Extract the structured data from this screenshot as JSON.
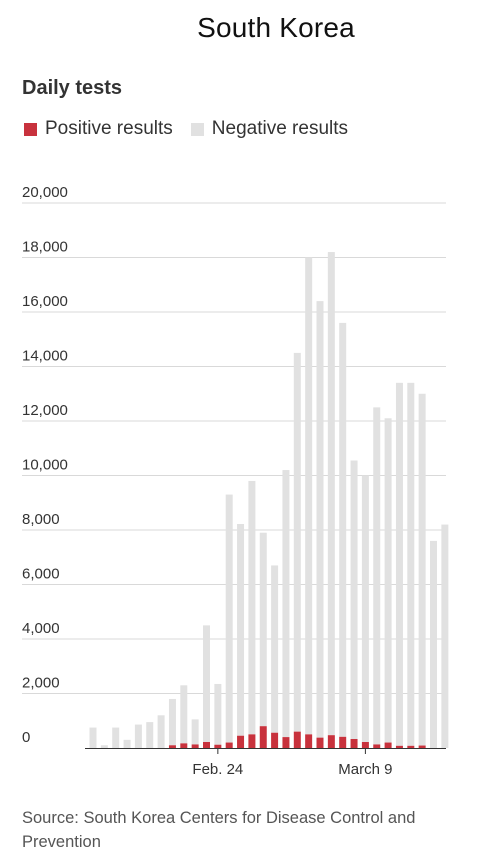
{
  "chart_data": {
    "type": "bar",
    "title": "South Korea",
    "subtitle": "Daily tests",
    "stacked": true,
    "ylim": [
      0,
      20000
    ],
    "y_ticks": [
      0,
      2000,
      4000,
      6000,
      8000,
      10000,
      12000,
      14000,
      16000,
      18000,
      20000
    ],
    "y_tick_labels": [
      "0",
      "2,000",
      "4,000",
      "6,000",
      "8,000",
      "10,000",
      "12,000",
      "14,000",
      "16,000",
      "18,000",
      "20,000"
    ],
    "x_ticks": [
      {
        "index": 11,
        "label": "Feb. 24"
      },
      {
        "index": 24,
        "label": "March 9"
      }
    ],
    "grid": true,
    "legend_position": "top-left",
    "series": [
      {
        "name": "Positive results",
        "color": "#c8323d",
        "values": [
          0,
          0,
          0,
          0,
          0,
          0,
          0,
          100,
          170,
          130,
          220,
          120,
          200,
          450,
          500,
          800,
          560,
          400,
          600,
          500,
          380,
          470,
          410,
          330,
          220,
          130,
          200,
          80,
          80,
          90,
          0
        ]
      },
      {
        "name": "Negative results",
        "color": "#e1e1e1",
        "values": [
          750,
          100,
          750,
          300,
          860,
          950,
          1200,
          1700,
          2130,
          920,
          4280,
          2230,
          9100,
          7770,
          9300,
          7100,
          6140,
          9800,
          13900,
          17500,
          16020,
          17730,
          15190,
          10220,
          9780,
          12370,
          11900,
          13320,
          13320,
          12910,
          7600
        ]
      }
    ],
    "extra_bar_totals": [
      8200
    ],
    "source": "Source: South Korea Centers for Disease Control and Prevention"
  }
}
